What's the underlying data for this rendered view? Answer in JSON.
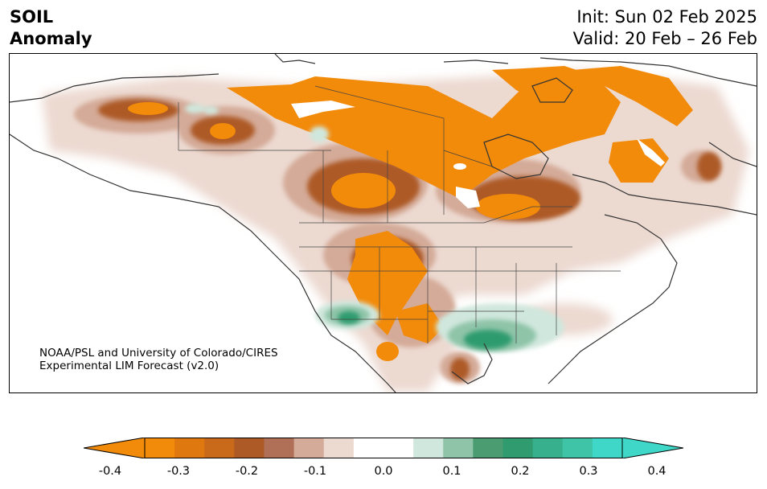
{
  "header": {
    "title_line1": "SOIL",
    "title_line2": "Anomaly",
    "init_label": "Init: Sun 02 Feb 2025",
    "valid_label": "Valid: 20 Feb – 26 Feb"
  },
  "credit": {
    "line1": "NOAA/PSL and University of Colorado/CIRES",
    "line2": "Experimental LIM Forecast (v2.0)"
  },
  "colorbar": {
    "min": -0.4,
    "max": 0.4,
    "step": 0.05,
    "extend": "both",
    "colors": [
      "#f28a0a",
      "#e07810",
      "#c9691a",
      "#ad5a27",
      "#b07057",
      "#d4aa98",
      "#ecd9d0",
      "#ffffff",
      "#ffffff",
      "#d0e7dd",
      "#8fc4a8",
      "#4b9c70",
      "#2f9b6e",
      "#37b08e",
      "#40c4a8",
      "#3fd8c8"
    ],
    "ticks": [
      {
        "value": -0.4,
        "label": "-0.4"
      },
      {
        "value": -0.3,
        "label": "-0.3"
      },
      {
        "value": -0.2,
        "label": "-0.2"
      },
      {
        "value": -0.1,
        "label": "-0.1"
      },
      {
        "value": 0.0,
        "label": "0.0"
      },
      {
        "value": 0.1,
        "label": "0.1"
      },
      {
        "value": 0.2,
        "label": "0.2"
      },
      {
        "value": 0.3,
        "label": "0.3"
      },
      {
        "value": 0.4,
        "label": "0.4"
      }
    ]
  },
  "map": {
    "region": "North America",
    "boundaries_color": "#333333",
    "land_color": "#ffffff"
  }
}
